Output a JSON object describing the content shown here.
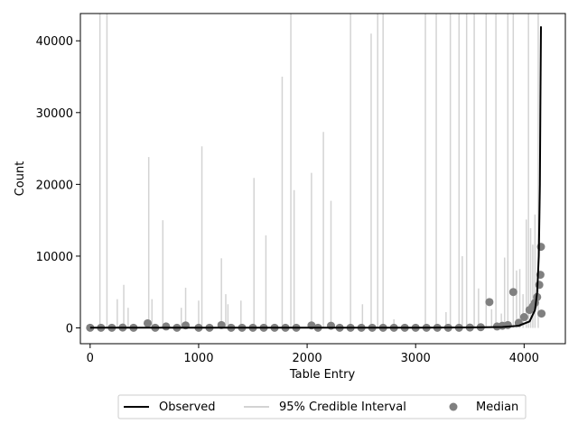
{
  "chart_data": {
    "type": "line",
    "xlabel": "Table Entry",
    "ylabel": "Count",
    "xlim": [
      -90,
      4380
    ],
    "ylim": [
      -2200,
      43800
    ],
    "xticks": [
      0,
      1000,
      2000,
      3000,
      4000
    ],
    "yticks": [
      0,
      10000,
      20000,
      30000,
      40000
    ],
    "grid": false,
    "legend_position": "bottom-center",
    "colors": {
      "observed": "#000000",
      "interval": "#d3d3d3",
      "median": "#808080"
    },
    "series": [
      {
        "name": "Observed",
        "type": "line",
        "x": [
          0,
          500,
          1000,
          1500,
          2000,
          2500,
          3000,
          3500,
          3800,
          3950,
          4050,
          4100,
          4120,
          4135,
          4145,
          4150,
          4155
        ],
        "y": [
          30,
          30,
          30,
          30,
          30,
          30,
          40,
          60,
          120,
          300,
          900,
          2500,
          5000,
          10000,
          20000,
          32000,
          42000
        ]
      },
      {
        "name": "95% Credible Interval",
        "type": "interval",
        "x": [
          90,
          155,
          250,
          310,
          350,
          540,
          570,
          670,
          840,
          880,
          1000,
          1030,
          1210,
          1250,
          1270,
          1390,
          1510,
          1620,
          1770,
          1850,
          1880,
          2040,
          2150,
          2220,
          2400,
          2510,
          2590,
          2650,
          2700,
          2800,
          3090,
          3190,
          3280,
          3320,
          3400,
          3430,
          3470,
          3540,
          3580,
          3650,
          3700,
          3740,
          3790,
          3820,
          3850,
          3900,
          3930,
          3960,
          3990,
          4020,
          4040,
          4060,
          4080,
          4100,
          4130
        ],
        "low": [
          0,
          0,
          0,
          0,
          0,
          0,
          0,
          0,
          0,
          0,
          0,
          0,
          0,
          0,
          0,
          0,
          0,
          0,
          0,
          0,
          0,
          0,
          0,
          0,
          0,
          0,
          0,
          0,
          0,
          0,
          0,
          0,
          0,
          0,
          0,
          0,
          0,
          0,
          0,
          0,
          0,
          0,
          0,
          0,
          0,
          0,
          0,
          0,
          0,
          0,
          0,
          0,
          0,
          0,
          0
        ],
        "high": [
          44000,
          44000,
          4000,
          6000,
          2800,
          23800,
          4000,
          15000,
          2800,
          5600,
          3800,
          25300,
          9700,
          4700,
          3300,
          3800,
          20900,
          12900,
          35000,
          44000,
          19200,
          21600,
          27300,
          17700,
          44000,
          3300,
          41000,
          44000,
          44000,
          1200,
          44000,
          44000,
          2200,
          44000,
          44000,
          10000,
          44000,
          44000,
          5500,
          44000,
          2600,
          44000,
          2000,
          9800,
          44000,
          44000,
          8000,
          8200,
          4700,
          15100,
          44000,
          13900,
          11600,
          15800,
          44000
        ]
      },
      {
        "name": "Median",
        "type": "scatter",
        "x": [
          0,
          100,
          200,
          300,
          400,
          530,
          600,
          700,
          800,
          880,
          1000,
          1100,
          1210,
          1300,
          1400,
          1500,
          1600,
          1700,
          1800,
          1900,
          2040,
          2100,
          2220,
          2300,
          2400,
          2500,
          2600,
          2700,
          2800,
          2900,
          3000,
          3100,
          3200,
          3300,
          3400,
          3500,
          3600,
          3680,
          3750,
          3800,
          3850,
          3900,
          3950,
          4000,
          4050,
          4080,
          4100,
          4120,
          4140,
          4150,
          4155,
          4160
        ],
        "y": [
          20,
          20,
          20,
          50,
          20,
          650,
          20,
          200,
          20,
          350,
          20,
          20,
          400,
          20,
          20,
          20,
          20,
          20,
          20,
          20,
          350,
          20,
          300,
          20,
          20,
          20,
          20,
          20,
          20,
          20,
          20,
          20,
          20,
          20,
          20,
          50,
          100,
          3600,
          200,
          300,
          400,
          5000,
          700,
          1500,
          2500,
          3000,
          3500,
          4300,
          6000,
          7400,
          11300,
          2000
        ]
      }
    ],
    "legend": [
      "Observed",
      "95% Credible Interval",
      "Median"
    ]
  }
}
